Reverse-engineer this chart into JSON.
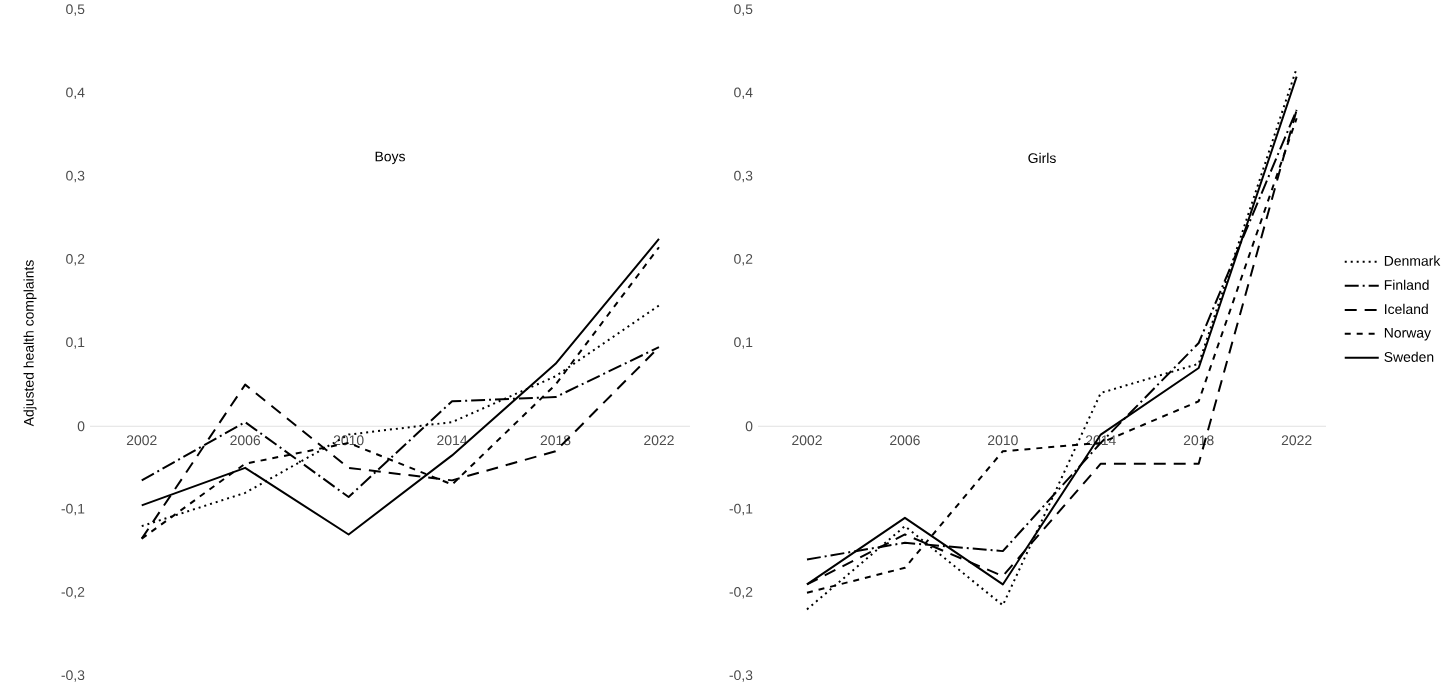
{
  "chart_data": [
    {
      "type": "line",
      "title": "Boys",
      "ylabel": "Adjusted health complaints",
      "categories": [
        "2002",
        "2006",
        "2010",
        "2014",
        "2018",
        "2022"
      ],
      "ylim": [
        -0.3,
        0.5
      ],
      "yticks": [
        {
          "value": -0.3,
          "label": "-0,3"
        },
        {
          "value": -0.2,
          "label": "-0,2"
        },
        {
          "value": -0.1,
          "label": "-0,1"
        },
        0,
        {
          "value": 0.1,
          "label": "0,1"
        },
        {
          "value": 0.2,
          "label": "0,2"
        },
        {
          "value": 0.3,
          "label": "0,3"
        },
        {
          "value": 0.4,
          "label": "0,4"
        },
        {
          "value": 0.5,
          "label": "0,5"
        }
      ],
      "legend": false,
      "series": [
        {
          "color": "#000000",
          "line_style": "dotted",
          "values": [
            -0.12,
            -0.08,
            -0.01,
            0.005,
            0.06,
            0.145
          ]
        },
        {
          "color": "#000000",
          "line_style": "dashdot",
          "values": [
            -0.065,
            0.005,
            -0.085,
            0.03,
            0.035,
            0.095
          ]
        },
        {
          "color": "#000000",
          "line_style": "long dashed",
          "values": [
            -0.135,
            0.05,
            -0.05,
            -0.065,
            -0.03,
            0.095
          ]
        },
        {
          "color": "#000000",
          "line_style": "dashed",
          "values": [
            -0.135,
            -0.045,
            -0.02,
            -0.07,
            0.05,
            0.215
          ]
        },
        {
          "color": "#000000",
          "line_style": "solid",
          "values": [
            -0.095,
            -0.05,
            -0.13,
            -0.035,
            0.075,
            0.225
          ]
        }
      ]
    },
    {
      "type": "line",
      "title": "Girls",
      "categories": [
        "2002",
        "2006",
        "2010",
        "2014",
        "2018",
        "2022"
      ],
      "ylim": [
        -0.3,
        0.5
      ],
      "yticks": [
        {
          "value": -0.3,
          "label": "-0,3"
        },
        {
          "value": -0.2,
          "label": "-0,2"
        },
        {
          "value": -0.1,
          "label": "-0,1"
        },
        0,
        {
          "value": 0.1,
          "label": "0,1"
        },
        {
          "value": 0.2,
          "label": "0,2"
        },
        {
          "value": 0.3,
          "label": "0,3"
        },
        {
          "value": 0.4,
          "label": "0,4"
        },
        {
          "value": 0.5,
          "label": "0,5"
        }
      ],
      "legend": "right",
      "series": [
        {
          "name": "Denmark",
          "color": "#000000",
          "line_style": "dotted",
          "values": [
            -0.22,
            -0.12,
            -0.215,
            0.04,
            0.075,
            0.43
          ]
        },
        {
          "name": "Finland",
          "color": "#000000",
          "line_style": "dashdot",
          "values": [
            -0.16,
            -0.14,
            -0.15,
            -0.02,
            0.1,
            0.38
          ]
        },
        {
          "name": "Iceland",
          "color": "#000000",
          "line_style": "long dashed",
          "values": [
            -0.19,
            -0.13,
            -0.18,
            -0.045,
            -0.045,
            0.38
          ]
        },
        {
          "name": "Norway",
          "color": "#000000",
          "line_style": "dashed",
          "values": [
            -0.2,
            -0.17,
            -0.03,
            -0.02,
            0.03,
            0.37
          ]
        },
        {
          "name": "Sweden",
          "color": "#000000",
          "line_style": "solid",
          "values": [
            -0.19,
            -0.11,
            -0.19,
            -0.01,
            0.07,
            0.42
          ]
        }
      ]
    }
  ]
}
